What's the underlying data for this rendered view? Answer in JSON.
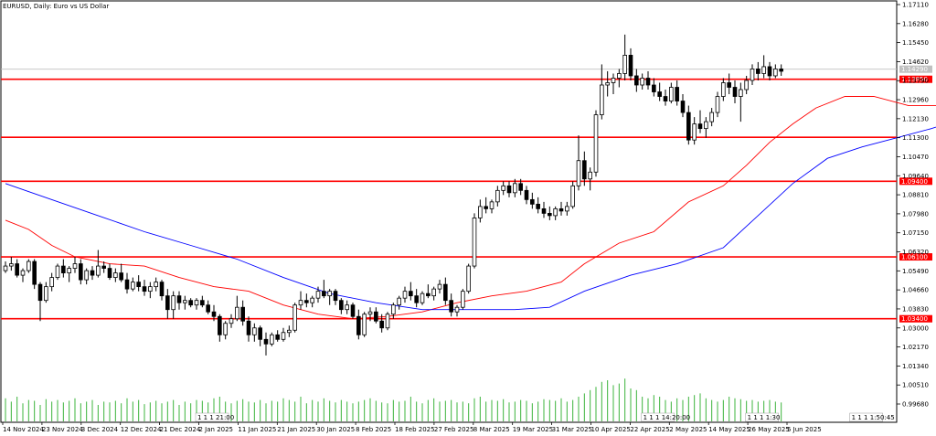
{
  "chart_data": {
    "type": "candlestick",
    "title": "EURUSD, Daily:  Euro vs US Dollar",
    "symbol": "EURUSD",
    "timeframe": "Daily",
    "price_axis": {
      "ticks": [
        "1.17110",
        "1.16280",
        "1.15450",
        "1.14620",
        "1.13790",
        "1.12960",
        "1.12130",
        "1.11300",
        "1.10470",
        "1.09640",
        "1.08810",
        "1.07980",
        "1.07150",
        "1.06320",
        "1.05490",
        "1.04660",
        "1.03830",
        "1.03000",
        "1.02170",
        "1.01340",
        "1.00510",
        "0.99680"
      ],
      "current_price": "1.14290",
      "ylim": [
        0.9968,
        1.1711
      ]
    },
    "date_axis": {
      "ticks": [
        "14 Nov 2024",
        "23 Nov 2024",
        "3 Dec 2024",
        "12 Dec 2024",
        "21 Dec 2024",
        "2 Jan 2025",
        "11 Jan 2025",
        "21 Jan 2025",
        "30 Jan 2025",
        "8 Feb 2025",
        "18 Feb 2025",
        "27 Feb 2025",
        "8 Mar 2025",
        "19 Mar 2025",
        "31 Mar 2025",
        "10 Apr 2025",
        "22 Apr 2025",
        "2 May 2025",
        "14 May 2025",
        "26 May 2025",
        "5 Jun 2025"
      ]
    },
    "horizontal_levels": [
      {
        "price": 1.1385,
        "label": "1.13850",
        "color": "#ff0000"
      },
      {
        "price": 1.1132,
        "label": "",
        "color": "#ff0000"
      },
      {
        "price": 1.094,
        "label": "1.09400",
        "color": "#ff0000"
      },
      {
        "price": 1.061,
        "label": "1.06100",
        "color": "#ff0000"
      },
      {
        "price": 1.034,
        "label": "1.03400",
        "color": "#ff0000"
      }
    ],
    "moving_averages": [
      {
        "name": "",
        "color": "#ff0000",
        "points": [
          [
            0,
            1.077
          ],
          [
            4,
            1.073
          ],
          [
            8,
            1.066
          ],
          [
            12,
            1.061
          ],
          [
            18,
            1.058
          ],
          [
            24,
            1.057
          ],
          [
            30,
            1.052
          ],
          [
            36,
            1.048
          ],
          [
            42,
            1.046
          ],
          [
            48,
            1.04
          ],
          [
            54,
            1.036
          ],
          [
            60,
            1.034
          ],
          [
            66,
            1.035
          ],
          [
            72,
            1.037
          ],
          [
            78,
            1.041
          ],
          [
            84,
            1.044
          ],
          [
            90,
            1.046
          ],
          [
            96,
            1.05
          ],
          [
            100,
            1.058
          ],
          [
            106,
            1.067
          ],
          [
            112,
            1.072
          ],
          [
            118,
            1.085
          ],
          [
            124,
            1.092
          ],
          [
            128,
            1.101
          ],
          [
            132,
            1.111
          ],
          [
            136,
            1.119
          ],
          [
            140,
            1.126
          ],
          [
            145,
            1.131
          ],
          [
            150,
            1.131
          ],
          [
            156,
            1.127
          ],
          [
            162,
            1.127
          ],
          [
            168,
            1.129
          ],
          [
            171,
            1.132
          ]
        ]
      },
      {
        "name": "",
        "color": "#0000ff",
        "points": [
          [
            0,
            1.093
          ],
          [
            8,
            1.086
          ],
          [
            16,
            1.079
          ],
          [
            24,
            1.072
          ],
          [
            32,
            1.066
          ],
          [
            40,
            1.06
          ],
          [
            48,
            1.052
          ],
          [
            56,
            1.045
          ],
          [
            64,
            1.041
          ],
          [
            72,
            1.038
          ],
          [
            80,
            1.038
          ],
          [
            88,
            1.038
          ],
          [
            94,
            1.039
          ],
          [
            100,
            1.046
          ],
          [
            108,
            1.053
          ],
          [
            116,
            1.058
          ],
          [
            124,
            1.065
          ],
          [
            130,
            1.079
          ],
          [
            136,
            1.093
          ],
          [
            142,
            1.104
          ],
          [
            148,
            1.109
          ],
          [
            154,
            1.113
          ],
          [
            160,
            1.117
          ],
          [
            166,
            1.122
          ],
          [
            171,
            1.128
          ]
        ]
      }
    ],
    "candles": [
      [
        1.055,
        1.059,
        1.054,
        1.057
      ],
      [
        1.057,
        1.061,
        1.055,
        1.058
      ],
      [
        1.058,
        1.06,
        1.052,
        1.053
      ],
      [
        1.053,
        1.056,
        1.05,
        1.055
      ],
      [
        1.055,
        1.06,
        1.054,
        1.059
      ],
      [
        1.059,
        1.06,
        1.047,
        1.049
      ],
      [
        1.049,
        1.05,
        1.033,
        1.042
      ],
      [
        1.042,
        1.05,
        1.041,
        1.048
      ],
      [
        1.048,
        1.054,
        1.046,
        1.052
      ],
      [
        1.052,
        1.058,
        1.051,
        1.057
      ],
      [
        1.057,
        1.06,
        1.052,
        1.054
      ],
      [
        1.054,
        1.057,
        1.05,
        1.056
      ],
      [
        1.056,
        1.061,
        1.054,
        1.058
      ],
      [
        1.058,
        1.06,
        1.049,
        1.051
      ],
      [
        1.051,
        1.056,
        1.049,
        1.055
      ],
      [
        1.055,
        1.057,
        1.051,
        1.053
      ],
      [
        1.053,
        1.064,
        1.052,
        1.057
      ],
      [
        1.057,
        1.059,
        1.054,
        1.056
      ],
      [
        1.056,
        1.058,
        1.051,
        1.052
      ],
      [
        1.052,
        1.056,
        1.05,
        1.054
      ],
      [
        1.054,
        1.058,
        1.05,
        1.051
      ],
      [
        1.051,
        1.054,
        1.045,
        1.047
      ],
      [
        1.047,
        1.052,
        1.046,
        1.05
      ],
      [
        1.05,
        1.053,
        1.046,
        1.048
      ],
      [
        1.048,
        1.051,
        1.044,
        1.046
      ],
      [
        1.046,
        1.05,
        1.043,
        1.048
      ],
      [
        1.048,
        1.052,
        1.046,
        1.05
      ],
      [
        1.05,
        1.051,
        1.042,
        1.044
      ],
      [
        1.044,
        1.047,
        1.034,
        1.038
      ],
      [
        1.038,
        1.046,
        1.034,
        1.044
      ],
      [
        1.044,
        1.046,
        1.038,
        1.041
      ],
      [
        1.041,
        1.044,
        1.038,
        1.042
      ],
      [
        1.042,
        1.043,
        1.039,
        1.04
      ],
      [
        1.04,
        1.043,
        1.038,
        1.042
      ],
      [
        1.042,
        1.044,
        1.039,
        1.04
      ],
      [
        1.04,
        1.042,
        1.036,
        1.037
      ],
      [
        1.037,
        1.04,
        1.033,
        1.035
      ],
      [
        1.035,
        1.036,
        1.024,
        1.027
      ],
      [
        1.027,
        1.033,
        1.025,
        1.032
      ],
      [
        1.032,
        1.036,
        1.03,
        1.034
      ],
      [
        1.034,
        1.044,
        1.033,
        1.039
      ],
      [
        1.039,
        1.042,
        1.031,
        1.033
      ],
      [
        1.033,
        1.035,
        1.024,
        1.027
      ],
      [
        1.027,
        1.032,
        1.024,
        1.03
      ],
      [
        1.03,
        1.031,
        1.022,
        1.025
      ],
      [
        1.025,
        1.028,
        1.018,
        1.023
      ],
      [
        1.023,
        1.028,
        1.022,
        1.027
      ],
      [
        1.027,
        1.029,
        1.024,
        1.025
      ],
      [
        1.025,
        1.03,
        1.024,
        1.028
      ],
      [
        1.028,
        1.031,
        1.026,
        1.029
      ],
      [
        1.029,
        1.041,
        1.028,
        1.04
      ],
      [
        1.04,
        1.046,
        1.038,
        1.042
      ],
      [
        1.042,
        1.045,
        1.039,
        1.041
      ],
      [
        1.041,
        1.044,
        1.039,
        1.043
      ],
      [
        1.043,
        1.048,
        1.041,
        1.046
      ],
      [
        1.046,
        1.051,
        1.043,
        1.044
      ],
      [
        1.044,
        1.047,
        1.04,
        1.046
      ],
      [
        1.046,
        1.047,
        1.04,
        1.042
      ],
      [
        1.042,
        1.043,
        1.036,
        1.038
      ],
      [
        1.038,
        1.042,
        1.036,
        1.04
      ],
      [
        1.04,
        1.041,
        1.034,
        1.035
      ],
      [
        1.035,
        1.038,
        1.025,
        1.027
      ],
      [
        1.027,
        1.037,
        1.026,
        1.036
      ],
      [
        1.036,
        1.039,
        1.033,
        1.037
      ],
      [
        1.037,
        1.039,
        1.032,
        1.033
      ],
      [
        1.033,
        1.036,
        1.028,
        1.03
      ],
      [
        1.03,
        1.037,
        1.029,
        1.036
      ],
      [
        1.036,
        1.041,
        1.034,
        1.04
      ],
      [
        1.04,
        1.044,
        1.038,
        1.043
      ],
      [
        1.043,
        1.048,
        1.041,
        1.046
      ],
      [
        1.046,
        1.05,
        1.042,
        1.044
      ],
      [
        1.044,
        1.047,
        1.039,
        1.041
      ],
      [
        1.041,
        1.046,
        1.04,
        1.045
      ],
      [
        1.045,
        1.049,
        1.043,
        1.044
      ],
      [
        1.044,
        1.048,
        1.042,
        1.047
      ],
      [
        1.047,
        1.051,
        1.045,
        1.049
      ],
      [
        1.049,
        1.052,
        1.04,
        1.042
      ],
      [
        1.042,
        1.045,
        1.035,
        1.037
      ],
      [
        1.037,
        1.04,
        1.035,
        1.039
      ],
      [
        1.039,
        1.047,
        1.038,
        1.046
      ],
      [
        1.046,
        1.058,
        1.045,
        1.057
      ],
      [
        1.057,
        1.08,
        1.056,
        1.078
      ],
      [
        1.078,
        1.086,
        1.076,
        1.083
      ],
      [
        1.083,
        1.087,
        1.08,
        1.082
      ],
      [
        1.082,
        1.086,
        1.08,
        1.085
      ],
      [
        1.085,
        1.092,
        1.083,
        1.09
      ],
      [
        1.09,
        1.094,
        1.088,
        1.092
      ],
      [
        1.092,
        1.094,
        1.087,
        1.089
      ],
      [
        1.089,
        1.095,
        1.087,
        1.093
      ],
      [
        1.093,
        1.095,
        1.088,
        1.09
      ],
      [
        1.09,
        1.092,
        1.084,
        1.086
      ],
      [
        1.086,
        1.089,
        1.082,
        1.084
      ],
      [
        1.084,
        1.087,
        1.08,
        1.082
      ],
      [
        1.082,
        1.085,
        1.078,
        1.08
      ],
      [
        1.08,
        1.083,
        1.077,
        1.079
      ],
      [
        1.079,
        1.083,
        1.077,
        1.082
      ],
      [
        1.082,
        1.085,
        1.079,
        1.081
      ],
      [
        1.081,
        1.085,
        1.079,
        1.083
      ],
      [
        1.083,
        1.094,
        1.082,
        1.092
      ],
      [
        1.092,
        1.114,
        1.09,
        1.103
      ],
      [
        1.103,
        1.107,
        1.092,
        1.095
      ],
      [
        1.095,
        1.1,
        1.09,
        1.098
      ],
      [
        1.098,
        1.125,
        1.096,
        1.123
      ],
      [
        1.123,
        1.145,
        1.121,
        1.136
      ],
      [
        1.136,
        1.142,
        1.131,
        1.137
      ],
      [
        1.137,
        1.141,
        1.132,
        1.139
      ],
      [
        1.139,
        1.143,
        1.135,
        1.141
      ],
      [
        1.141,
        1.158,
        1.138,
        1.149
      ],
      [
        1.149,
        1.152,
        1.138,
        1.14
      ],
      [
        1.14,
        1.143,
        1.133,
        1.136
      ],
      [
        1.136,
        1.141,
        1.134,
        1.139
      ],
      [
        1.139,
        1.142,
        1.134,
        1.136
      ],
      [
        1.136,
        1.139,
        1.131,
        1.133
      ],
      [
        1.133,
        1.137,
        1.129,
        1.131
      ],
      [
        1.131,
        1.134,
        1.127,
        1.129
      ],
      [
        1.129,
        1.137,
        1.128,
        1.135
      ],
      [
        1.135,
        1.138,
        1.127,
        1.129
      ],
      [
        1.129,
        1.132,
        1.122,
        1.124
      ],
      [
        1.124,
        1.127,
        1.11,
        1.112
      ],
      [
        1.112,
        1.122,
        1.11,
        1.119
      ],
      [
        1.119,
        1.125,
        1.115,
        1.117
      ],
      [
        1.117,
        1.122,
        1.113,
        1.12
      ],
      [
        1.12,
        1.126,
        1.118,
        1.124
      ],
      [
        1.124,
        1.133,
        1.122,
        1.131
      ],
      [
        1.131,
        1.139,
        1.129,
        1.137
      ],
      [
        1.137,
        1.141,
        1.132,
        1.135
      ],
      [
        1.135,
        1.138,
        1.128,
        1.131
      ],
      [
        1.131,
        1.137,
        1.12,
        1.134
      ],
      [
        1.134,
        1.14,
        1.132,
        1.138
      ],
      [
        1.138,
        1.145,
        1.136,
        1.143
      ],
      [
        1.143,
        1.146,
        1.138,
        1.141
      ],
      [
        1.141,
        1.149,
        1.139,
        1.144
      ],
      [
        1.144,
        1.146,
        1.138,
        1.14
      ],
      [
        1.14,
        1.145,
        1.139,
        1.143
      ],
      [
        1.143,
        1.145,
        1.14,
        1.142
      ]
    ],
    "volume": [
      28,
      24,
      30,
      22,
      26,
      25,
      20,
      27,
      24,
      26,
      23,
      25,
      28,
      22,
      24,
      26,
      20,
      24,
      23,
      25,
      22,
      28,
      24,
      26,
      21,
      23,
      25,
      22,
      24,
      26,
      20,
      24,
      22,
      26,
      25,
      23,
      28,
      30,
      24,
      22,
      25,
      27,
      24,
      23,
      26,
      22,
      25,
      24,
      28,
      26,
      24,
      30,
      22,
      26,
      24,
      28,
      25,
      23,
      26,
      24,
      22,
      24,
      26,
      28,
      25,
      23,
      22,
      26,
      24,
      25,
      30,
      24,
      22,
      26,
      28,
      24,
      25,
      26,
      23,
      24,
      22,
      28,
      30,
      24,
      26,
      25,
      27,
      23,
      24,
      26,
      25,
      22,
      24,
      27,
      26,
      25,
      28,
      24,
      26,
      30,
      34,
      38,
      42,
      48,
      50,
      44,
      46,
      52,
      40,
      38,
      30,
      28,
      32,
      30,
      26,
      24,
      28,
      26,
      30,
      32,
      34,
      28,
      26,
      24,
      26,
      30,
      28,
      27,
      25,
      26,
      24,
      25,
      26,
      24,
      23
    ],
    "separators": [
      {
        "at": 33,
        "label": "1 1 1 21:00"
      },
      {
        "at": 110,
        "label": "1 1 1 14:20:00"
      },
      {
        "at": 128,
        "label": "1 1 1 1:30"
      },
      {
        "at": 146,
        "label": "1 1 1 1:50:45"
      }
    ]
  }
}
